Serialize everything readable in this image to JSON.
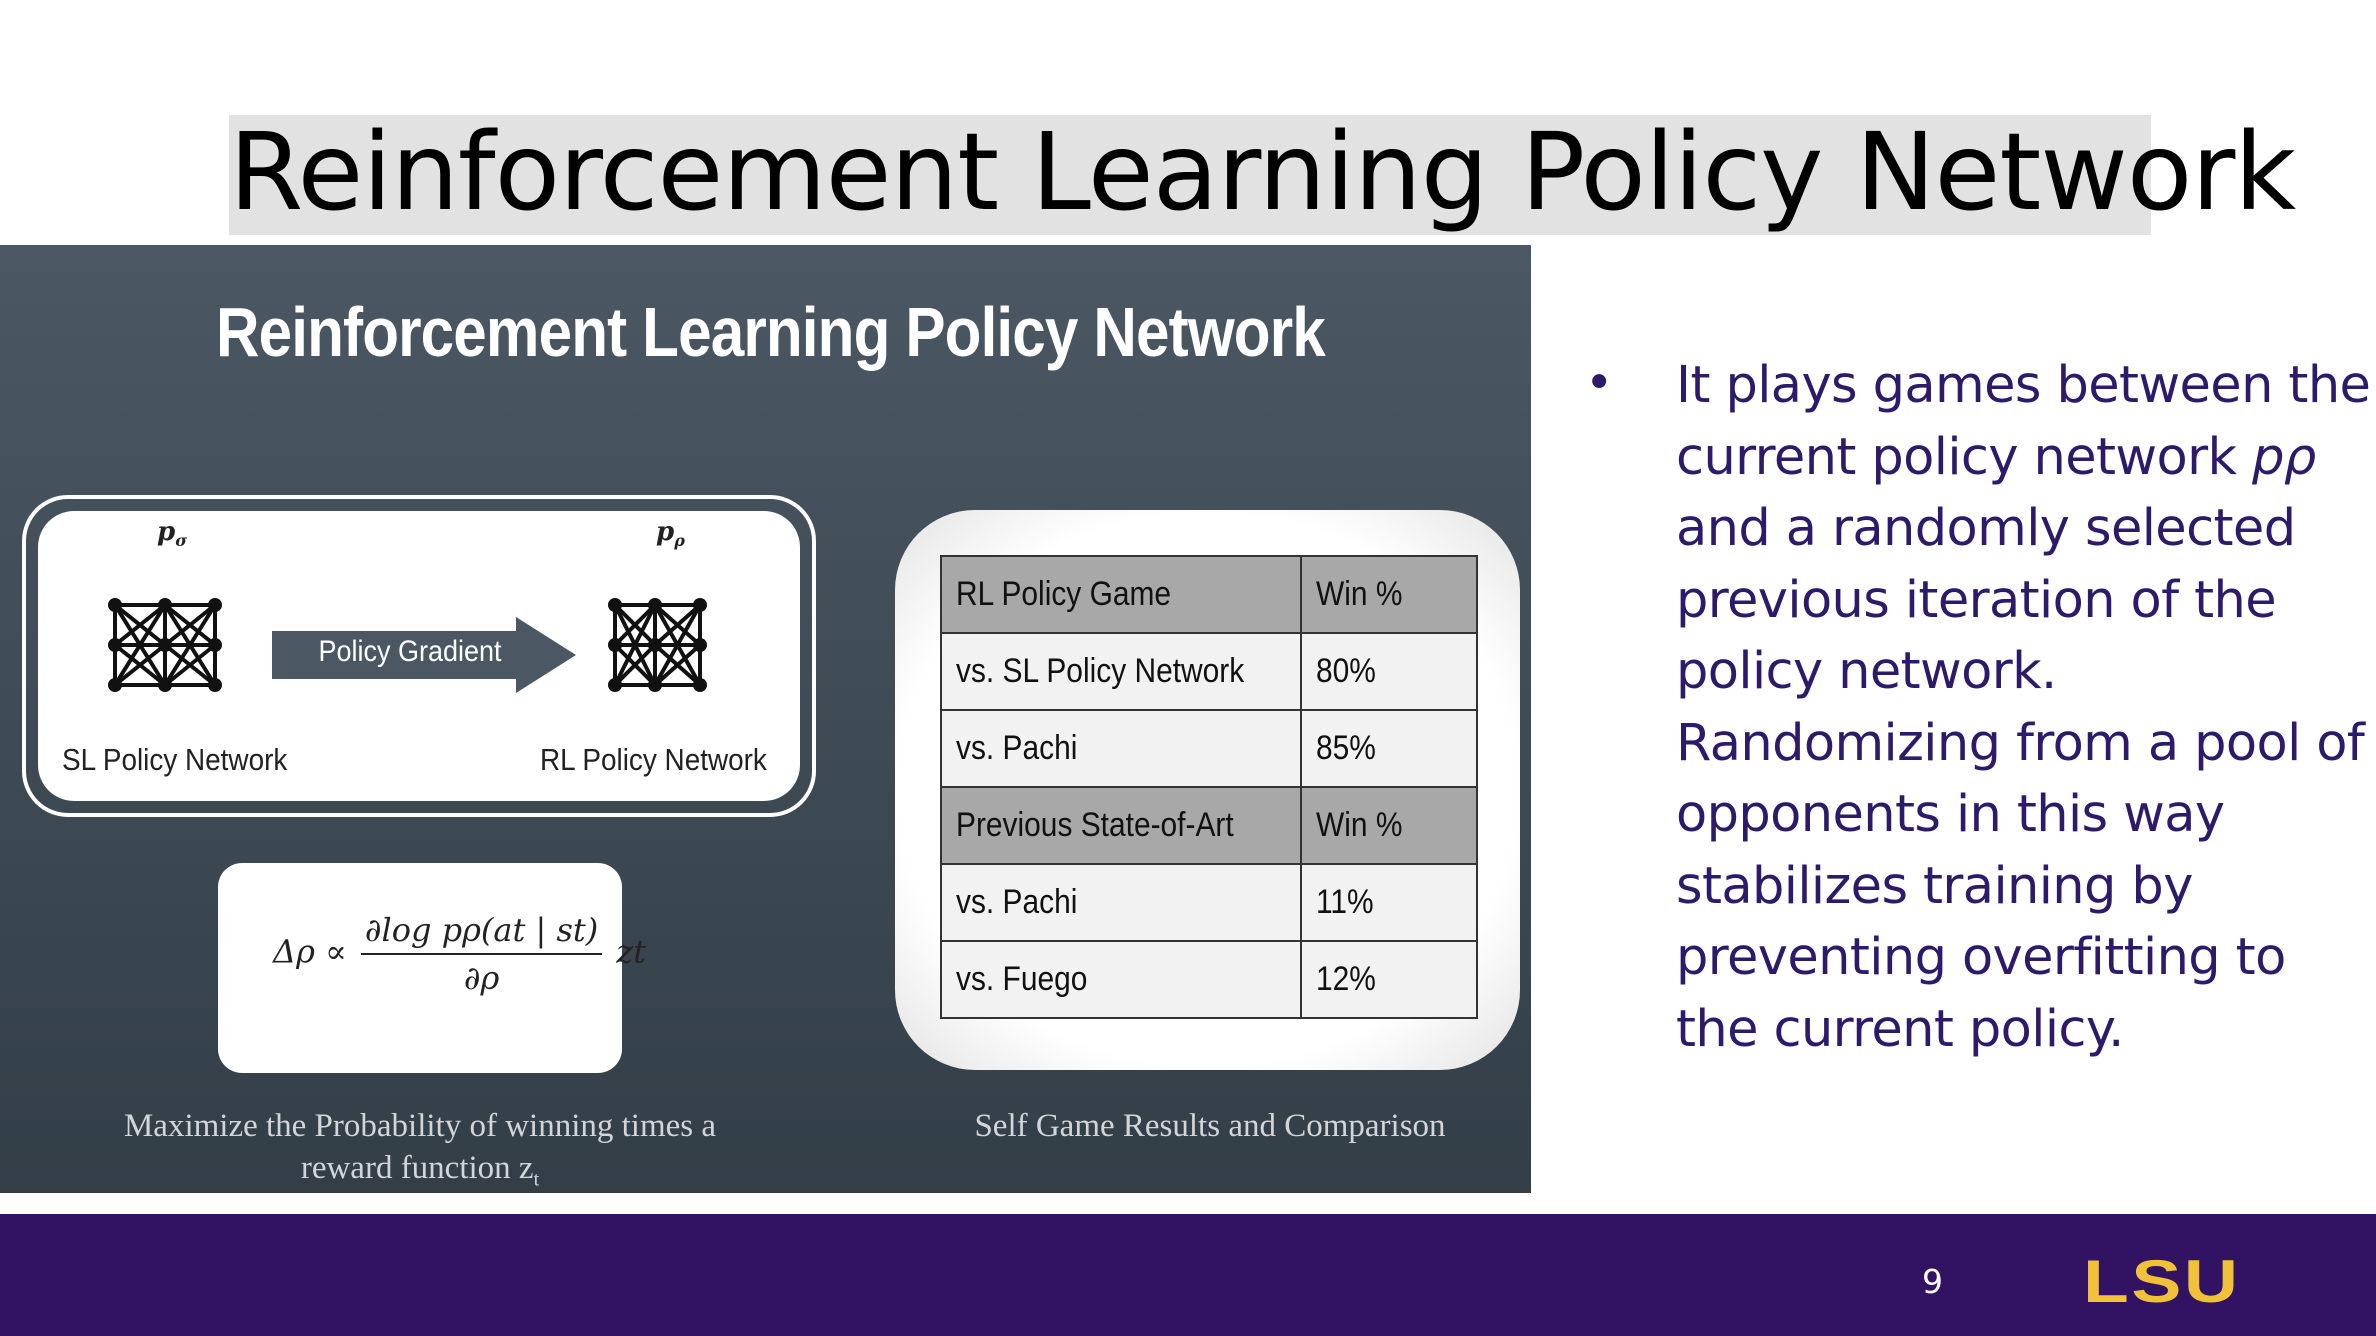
{
  "slide": {
    "title": "Reinforcement Learning Policy Network",
    "page_number": "9",
    "logo_text": "LSU"
  },
  "panel": {
    "title": "Reinforcement Learning Policy Network",
    "diagram": {
      "sl_symbol": "p",
      "sl_symbol_sub": "σ",
      "rl_symbol": "p",
      "rl_symbol_sub": "ρ",
      "arrow_label": "Policy Gradient",
      "sl_label": "SL Policy Network",
      "rl_label": "RL Policy Network"
    },
    "formula": {
      "lhs": "Δρ ∝",
      "numerator": "∂log pρ(at | st)",
      "denominator": "∂ρ",
      "rhs": "zt"
    },
    "left_caption_line1": "Maximize the Probability of winning times a",
    "left_caption_line2": "reward function z",
    "left_caption_sub": "t",
    "right_caption": "Self Game Results and Comparison",
    "table": {
      "rows": [
        {
          "c1": "RL Policy Game",
          "c2": "Win %",
          "head": true
        },
        {
          "c1": "vs. SL Policy Network",
          "c2": "80%",
          "head": false
        },
        {
          "c1": "vs. Pachi",
          "c2": "85%",
          "head": false
        },
        {
          "c1": "Previous State-of-Art",
          "c2": "Win %",
          "head": true
        },
        {
          "c1": "vs. Pachi",
          "c2": "11%",
          "head": false
        },
        {
          "c1": "vs. Fuego",
          "c2": "12%",
          "head": false
        }
      ]
    }
  },
  "bullet": {
    "symbol": "•",
    "line1": "It plays games between the",
    "line2_text": "current policy network ",
    "line2_italic": "pρ",
    "line3": "and a randomly selected",
    "line4": "previous iteration of the",
    "line5": "policy network.",
    "line6": "Randomizing from a pool of",
    "line7": "opponents in this way",
    "line8": "stabilizes training by",
    "line9": "preventing overfitting to",
    "line10": "the current policy."
  }
}
